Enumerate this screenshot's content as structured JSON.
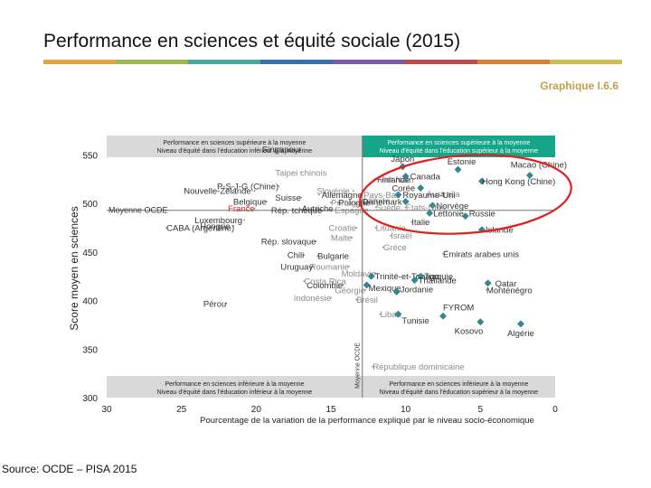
{
  "title": "Performance en sciences et équité sociale (2015)",
  "graph_ref": "Graphique I.6.6",
  "source": "Source: OCDE – PISA 2015",
  "colorbar": [
    "#e8a33d",
    "#9bbb4f",
    "#4aa8a0",
    "#3a6fb0",
    "#7f5ba7",
    "#c24a4a",
    "#e07b39",
    "#d6b94c"
  ],
  "colors": {
    "band_gray": "#d9d9d9",
    "band_teal": "#17a589",
    "point": "#2e8b96",
    "circle": "#e0201b",
    "label": "#333333",
    "label_faded": "#8a8a8a",
    "france": "#e0201b"
  },
  "chart_data": {
    "type": "scatter",
    "xlabel": "Pourcentage de la variation de la performance expliqué par le niveau socio-économique",
    "ylabel": "Score moyen en sciences",
    "xlim": [
      30,
      0
    ],
    "ylim": [
      300,
      570
    ],
    "xticks": [
      30,
      25,
      20,
      15,
      10,
      5,
      0
    ],
    "yticks": [
      300,
      350,
      400,
      450,
      500,
      550
    ],
    "reference_lines": {
      "x_label": "Moyenne OCDE",
      "x": 12.9,
      "y_label": "Moyenne OCDE",
      "y": 493
    },
    "quadrants": {
      "top_left": [
        "Performance en sciences supérieure à la moyenne",
        "Niveau d'équité dans l'éducation inférieur à la moyenne"
      ],
      "top_right": [
        "Performance en sciences supérieure à la moyenne",
        "Niveau d'équité dans l'éducation supérieur à la moyenne"
      ],
      "bottom_left": [
        "Performance en sciences inférieure à la moyenne",
        "Niveau d'équité dans l'éducation inférieur à la moyenne"
      ],
      "bottom_right": [
        "Performance en sciences inférieure à la moyenne",
        "Niveau d'équité dans l'éducation supérieur à la moyenne"
      ]
    },
    "highlight": "top_right",
    "points": [
      {
        "name": "Singapour",
        "x": 16.8,
        "y": 556,
        "marker": false,
        "style": "normal",
        "anchor": "end",
        "dx": -3,
        "dy": 0
      },
      {
        "name": "Nouvelle-Zélande",
        "x": 20.1,
        "y": 513,
        "marker": false,
        "style": "normal",
        "anchor": "end",
        "dx": -4,
        "dy": 0
      },
      {
        "name": "Taipei chinois",
        "x": 17.0,
        "y": 532,
        "marker": false,
        "style": "faded",
        "anchor": "middle",
        "dx": 0,
        "dy": 0
      },
      {
        "name": "Slovénie",
        "x": 13.5,
        "y": 513,
        "marker": false,
        "style": "faded",
        "anchor": "end",
        "dx": -4,
        "dy": 0
      },
      {
        "name": "Pays-Bas",
        "x": 13.0,
        "y": 509,
        "marker": false,
        "style": "faded",
        "anchor": "start",
        "dx": 3,
        "dy": 0
      },
      {
        "name": "Irlande",
        "x": 13.0,
        "y": 503,
        "marker": false,
        "style": "faded",
        "anchor": "start",
        "dx": 3,
        "dy": 0
      },
      {
        "name": "P-S-J-G (Chine)",
        "x": 18.5,
        "y": 518,
        "marker": false,
        "style": "normal",
        "anchor": "end",
        "dx": 0,
        "dy": 0
      },
      {
        "name": "Allemagne",
        "x": 15.8,
        "y": 509,
        "marker": false,
        "style": "normal",
        "anchor": "start",
        "dx": 3,
        "dy": 0
      },
      {
        "name": "Viet Nam",
        "x": 12.0,
        "y": 525,
        "marker": false,
        "style": "faded",
        "anchor": "start",
        "dx": 3,
        "dy": 0
      },
      {
        "name": "Belgique",
        "x": 19.3,
        "y": 502,
        "marker": false,
        "style": "normal",
        "anchor": "end",
        "dx": 0,
        "dy": 0
      },
      {
        "name": "Suisse",
        "x": 17.0,
        "y": 506,
        "marker": false,
        "style": "normal",
        "anchor": "end",
        "dx": 0,
        "dy": 0
      },
      {
        "name": "Pologne",
        "x": 14.5,
        "y": 501,
        "marker": false,
        "style": "normal",
        "anchor": "start",
        "dx": 0,
        "dy": 0
      },
      {
        "name": "Portugal",
        "x": 15.0,
        "y": 501,
        "marker": false,
        "style": "faded",
        "anchor": "start",
        "dx": 0,
        "dy": 0
      },
      {
        "name": "France",
        "x": 20.1,
        "y": 495,
        "marker": false,
        "style": "france",
        "anchor": "end",
        "dx": 0,
        "dy": 0
      },
      {
        "name": "Autriche",
        "x": 15.9,
        "y": 495,
        "marker": false,
        "style": "normal",
        "anchor": "middle",
        "dx": 0,
        "dy": 0
      },
      {
        "name": "Luxembourg",
        "x": 20.8,
        "y": 483,
        "marker": false,
        "style": "normal",
        "anchor": "end",
        "dx": -2,
        "dy": 0
      },
      {
        "name": "Hongrie",
        "x": 21.5,
        "y": 477,
        "marker": false,
        "style": "normal",
        "anchor": "end",
        "dx": -4,
        "dy": 0
      },
      {
        "name": "Rép. tchèque",
        "x": 19.0,
        "y": 493,
        "marker": false,
        "style": "normal",
        "anchor": "start",
        "dx": 0,
        "dy": 0
      },
      {
        "name": "CABA (Argentine)",
        "x": 26.0,
        "y": 475,
        "marker": false,
        "style": "normal",
        "anchor": "start",
        "dx": 0,
        "dy": 0
      },
      {
        "name": "Rép. slovaque",
        "x": 16.0,
        "y": 461,
        "marker": false,
        "style": "normal",
        "anchor": "end",
        "dx": 0,
        "dy": 0
      },
      {
        "name": "Chili",
        "x": 16.8,
        "y": 447,
        "marker": false,
        "style": "normal",
        "anchor": "end",
        "dx": 0,
        "dy": 0
      },
      {
        "name": "Bulgarie",
        "x": 15.9,
        "y": 446,
        "marker": false,
        "style": "normal",
        "anchor": "start",
        "dx": 0,
        "dy": 0
      },
      {
        "name": "Roumanie",
        "x": 13.8,
        "y": 435,
        "marker": false,
        "style": "faded",
        "anchor": "end",
        "dx": 0,
        "dy": 0
      },
      {
        "name": "Moldavie",
        "x": 12.0,
        "y": 428,
        "marker": false,
        "style": "faded",
        "anchor": "end",
        "dx": 0,
        "dy": 0
      },
      {
        "name": "Uruguay",
        "x": 16.2,
        "y": 435,
        "marker": false,
        "style": "normal",
        "anchor": "end",
        "dx": 0,
        "dy": 0
      },
      {
        "name": "Colombie",
        "x": 14.2,
        "y": 416,
        "marker": false,
        "style": "normal",
        "anchor": "end",
        "dx": 0,
        "dy": 0
      },
      {
        "name": "Costa Rica",
        "x": 16.8,
        "y": 420,
        "marker": false,
        "style": "faded",
        "anchor": "start",
        "dx": 0,
        "dy": 0
      },
      {
        "name": "Géorgie",
        "x": 12.7,
        "y": 411,
        "marker": false,
        "style": "faded",
        "anchor": "end",
        "dx": 0,
        "dy": 0
      },
      {
        "name": "Indonésie",
        "x": 15.0,
        "y": 403,
        "marker": false,
        "style": "faded",
        "anchor": "end",
        "dx": 0,
        "dy": 0
      },
      {
        "name": "Brésil",
        "x": 13.3,
        "y": 401,
        "marker": false,
        "style": "faded",
        "anchor": "start",
        "dx": 0,
        "dy": 0
      },
      {
        "name": "Pérou",
        "x": 22.0,
        "y": 397,
        "marker": false,
        "style": "normal",
        "anchor": "end",
        "dx": 0,
        "dy": 0
      },
      {
        "name": "Liban",
        "x": 11.7,
        "y": 386,
        "marker": false,
        "style": "faded",
        "anchor": "start",
        "dx": 0,
        "dy": 0
      },
      {
        "name": "Espagne",
        "x": 13.6,
        "y": 493,
        "marker": false,
        "style": "faded",
        "anchor": "middle",
        "dx": 0,
        "dy": 0
      },
      {
        "name": "Suède",
        "x": 12.0,
        "y": 496,
        "marker": false,
        "style": "faded",
        "anchor": "start",
        "dx": 0,
        "dy": 0
      },
      {
        "name": "Croatie",
        "x": 13.3,
        "y": 475,
        "marker": false,
        "style": "faded",
        "anchor": "end",
        "dx": 0,
        "dy": 0
      },
      {
        "name": "Lituanie",
        "x": 12.0,
        "y": 475,
        "marker": false,
        "style": "faded",
        "anchor": "start",
        "dx": 0,
        "dy": 0
      },
      {
        "name": "Malte",
        "x": 13.6,
        "y": 465,
        "marker": false,
        "style": "faded",
        "anchor": "end",
        "dx": 0,
        "dy": 0
      },
      {
        "name": "Israël",
        "x": 11.0,
        "y": 467,
        "marker": false,
        "style": "faded",
        "anchor": "start",
        "dx": 0,
        "dy": 0
      },
      {
        "name": "Grèce",
        "x": 11.5,
        "y": 455,
        "marker": false,
        "style": "faded",
        "anchor": "start",
        "dx": 0,
        "dy": 0
      },
      {
        "name": "République dominicaine",
        "x": 12.2,
        "y": 332,
        "marker": false,
        "style": "faded",
        "anchor": "start",
        "dx": 0,
        "dy": 0
      },
      {
        "name": "Japon",
        "x": 10.2,
        "y": 538,
        "marker": true,
        "style": "normal",
        "anchor": "middle",
        "dx": 0,
        "dy": -9
      },
      {
        "name": "Australia",
        "x": 7.5,
        "y": 510,
        "marker": false,
        "style": "faded",
        "anchor": "middle",
        "dx": 0,
        "dy": 0
      },
      {
        "name": "Estonie",
        "x": 6.5,
        "y": 535,
        "marker": true,
        "style": "normal",
        "anchor": "middle",
        "dx": 4,
        "dy": -9
      },
      {
        "name": "Finlande",
        "x": 12.1,
        "y": 525,
        "marker": false,
        "style": "normal",
        "anchor": "start",
        "dx": 3,
        "dy": 0
      },
      {
        "name": "Canada",
        "x": 10.0,
        "y": 528,
        "marker": true,
        "style": "normal",
        "anchor": "start",
        "dx": 5,
        "dy": 0
      },
      {
        "name": "Corée",
        "x": 9.0,
        "y": 516,
        "marker": true,
        "style": "normal",
        "anchor": "end",
        "dx": -6,
        "dy": 0
      },
      {
        "name": "Macao (Chine)",
        "x": 1.7,
        "y": 529,
        "marker": true,
        "style": "normal",
        "anchor": "middle",
        "dx": 10,
        "dy": -12
      },
      {
        "name": "Hong Kong (Chine)",
        "x": 4.9,
        "y": 523,
        "marker": true,
        "style": "normal",
        "anchor": "start",
        "dx": 0,
        "dy": 0
      },
      {
        "name": "Royaume-Uni",
        "x": 10.5,
        "y": 509,
        "marker": true,
        "style": "normal",
        "anchor": "start",
        "dx": 5,
        "dy": 0
      },
      {
        "name": "Danemark",
        "x": 10.0,
        "y": 502,
        "marker": true,
        "style": "normal",
        "anchor": "end",
        "dx": -4,
        "dy": 0
      },
      {
        "name": "Norvège",
        "x": 8.2,
        "y": 498,
        "marker": true,
        "style": "normal",
        "anchor": "start",
        "dx": 4,
        "dy": 0
      },
      {
        "name": "Lettonie",
        "x": 8.4,
        "y": 490,
        "marker": true,
        "style": "normal",
        "anchor": "start",
        "dx": 4,
        "dy": 0
      },
      {
        "name": "Italie",
        "x": 9.6,
        "y": 481,
        "marker": false,
        "style": "normal",
        "anchor": "start",
        "dx": 0,
        "dy": 0
      },
      {
        "name": "Russie",
        "x": 6.0,
        "y": 487,
        "marker": true,
        "style": "normal",
        "anchor": "start",
        "dx": 4,
        "dy": -3
      },
      {
        "name": "Islande",
        "x": 4.9,
        "y": 473,
        "marker": true,
        "style": "normal",
        "anchor": "start",
        "dx": 4,
        "dy": 0
      },
      {
        "name": "États-Unis",
        "x": 10.0,
        "y": 496,
        "marker": false,
        "style": "faded",
        "anchor": "start",
        "dx": 0,
        "dy": 0
      },
      {
        "name": "Émirats arabes unis",
        "x": 7.5,
        "y": 448,
        "marker": false,
        "style": "normal",
        "anchor": "start",
        "dx": 0,
        "dy": 0
      },
      {
        "name": "Trinité-et-Tobago",
        "x": 12.3,
        "y": 425,
        "marker": true,
        "style": "normal",
        "anchor": "start",
        "dx": 4,
        "dy": 0
      },
      {
        "name": "Turquie",
        "x": 9.0,
        "y": 425,
        "marker": true,
        "style": "normal",
        "anchor": "start",
        "dx": 4,
        "dy": 0
      },
      {
        "name": "Mexique",
        "x": 12.6,
        "y": 416,
        "marker": true,
        "style": "normal",
        "anchor": "start",
        "dx": 2,
        "dy": 3
      },
      {
        "name": "Thaïlande",
        "x": 9.4,
        "y": 421,
        "marker": true,
        "style": "normal",
        "anchor": "start",
        "dx": 4,
        "dy": 0
      },
      {
        "name": "Qatar",
        "x": 4.5,
        "y": 418,
        "marker": true,
        "style": "normal",
        "anchor": "start",
        "dx": 8,
        "dy": 0
      },
      {
        "name": "Monténégro",
        "x": 4.6,
        "y": 411,
        "marker": false,
        "style": "normal",
        "anchor": "start",
        "dx": 0,
        "dy": 0
      },
      {
        "name": "Jordanie",
        "x": 10.6,
        "y": 409,
        "marker": true,
        "style": "normal",
        "anchor": "start",
        "dx": 4,
        "dy": -3
      },
      {
        "name": "FYROM",
        "x": 7.5,
        "y": 384,
        "marker": true,
        "style": "normal",
        "anchor": "start",
        "dx": 0,
        "dy": -10
      },
      {
        "name": "Tunisie",
        "x": 10.5,
        "y": 386,
        "marker": true,
        "style": "normal",
        "anchor": "start",
        "dx": 4,
        "dy": 7
      },
      {
        "name": "Kosovo",
        "x": 5.0,
        "y": 378,
        "marker": true,
        "style": "normal",
        "anchor": "end",
        "dx": 3,
        "dy": 10
      },
      {
        "name": "Algérie",
        "x": 2.3,
        "y": 376,
        "marker": true,
        "style": "normal",
        "anchor": "middle",
        "dx": 0,
        "dy": 10
      }
    ]
  }
}
